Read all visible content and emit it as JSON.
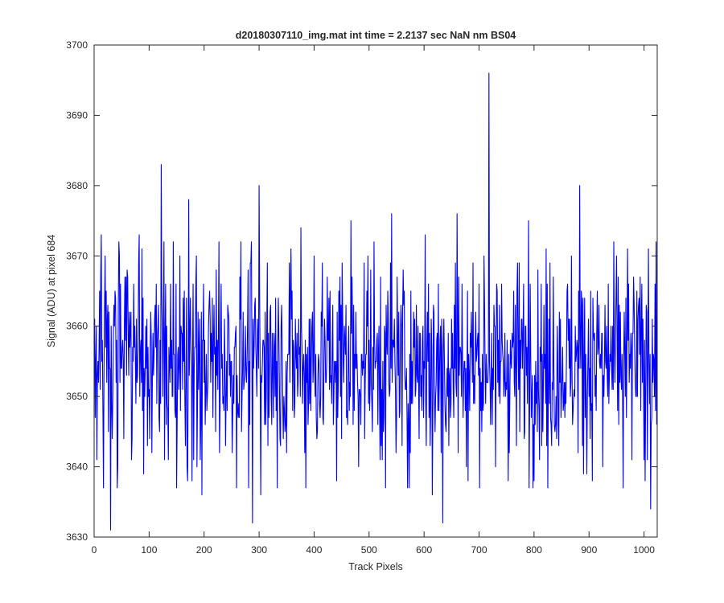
{
  "chart_data": {
    "type": "line",
    "title": "d20180307110_img.mat int time = 2.2137 sec  NaN nm BS04",
    "xlabel": "Track Pixels",
    "ylabel": "Signal (ADU) at pixel 684",
    "xlim": [
      0,
      1024
    ],
    "ylim": [
      3630,
      3700
    ],
    "xticks": [
      0,
      100,
      200,
      300,
      400,
      500,
      600,
      700,
      800,
      900,
      1000
    ],
    "yticks": [
      3630,
      3640,
      3650,
      3660,
      3670,
      3680,
      3690,
      3700
    ],
    "grid": false,
    "legend": "none",
    "series": [
      {
        "color": "#0000ff",
        "n_points": 1024,
        "mean": 3655,
        "noise_sd": 7,
        "notable_points": [
          [
            5,
            3641
          ],
          [
            9,
            3657
          ],
          [
            13,
            3673
          ],
          [
            20,
            3670
          ],
          [
            26,
            3645
          ],
          [
            30,
            3631
          ],
          [
            38,
            3665
          ],
          [
            42,
            3637
          ],
          [
            45,
            3672
          ],
          [
            82,
            3673
          ],
          [
            90,
            3639
          ],
          [
            122,
            3683
          ],
          [
            128,
            3641
          ],
          [
            150,
            3637
          ],
          [
            156,
            3670
          ],
          [
            172,
            3678
          ],
          [
            178,
            3638
          ],
          [
            196,
            3636
          ],
          [
            210,
            3665
          ],
          [
            227,
            3672
          ],
          [
            288,
            3632
          ],
          [
            300,
            3680
          ],
          [
            303,
            3636
          ],
          [
            315,
            3669
          ],
          [
            335,
            3664
          ],
          [
            355,
            3669
          ],
          [
            376,
            3674
          ],
          [
            385,
            3637
          ],
          [
            400,
            3670
          ],
          [
            440,
            3655
          ],
          [
            467,
            3675
          ],
          [
            498,
            3670
          ],
          [
            530,
            3637
          ],
          [
            541,
            3676
          ],
          [
            560,
            3643
          ],
          [
            570,
            3637
          ],
          [
            602,
            3673
          ],
          [
            615,
            3636
          ],
          [
            625,
            3648
          ],
          [
            634,
            3632
          ],
          [
            660,
            3676
          ],
          [
            680,
            3638
          ],
          [
            718,
            3696
          ],
          [
            730,
            3640
          ],
          [
            790,
            3675
          ],
          [
            825,
            3637
          ],
          [
            883,
            3680
          ],
          [
            925,
            3640
          ],
          [
            962,
            3637
          ],
          [
            1002,
            3638
          ],
          [
            1008,
            3671
          ],
          [
            1012,
            3634
          ],
          [
            1020,
            3666
          ]
        ]
      }
    ]
  }
}
